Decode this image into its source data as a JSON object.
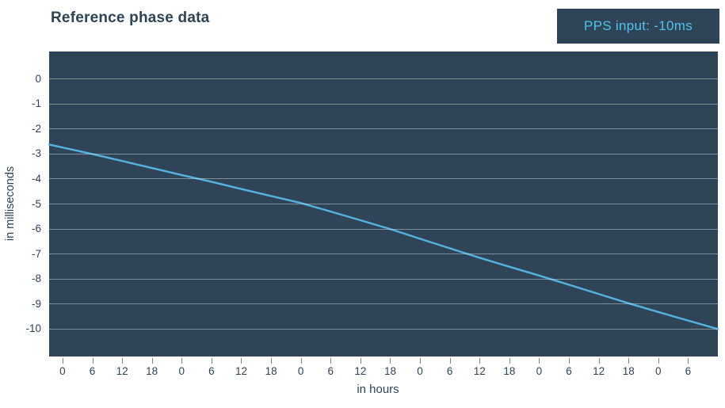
{
  "page": {
    "background": "#ffffff"
  },
  "header": {
    "title": "Reference phase data"
  },
  "badge": {
    "label": "PPS input: -10ms"
  },
  "chart_data": {
    "type": "line",
    "title": "Reference phase data",
    "xlabel": "in hours",
    "ylabel": "in milliseconds",
    "grid": "horizontal-only",
    "legend": "none",
    "x_domain_hours": [
      -2.7,
      132
    ],
    "y_domain_ms": [
      1.1,
      -11.1
    ],
    "y_tick_values": [
      0,
      -1,
      -2,
      -3,
      -4,
      -5,
      -6,
      -7,
      -8,
      -9,
      -10
    ],
    "y_tick_labels": [
      "0",
      "-1",
      "-2",
      "-3",
      "-4",
      "-5",
      "-6",
      "-7",
      "-8",
      "-9",
      "-10"
    ],
    "x_tick_hours": [
      0,
      6,
      12,
      18,
      24,
      30,
      36,
      42,
      48,
      54,
      60,
      66,
      72,
      78,
      84,
      90,
      96,
      102,
      108,
      114,
      120,
      126
    ],
    "x_tick_labels": [
      "0",
      "6",
      "12",
      "18",
      "0",
      "6",
      "12",
      "18",
      "0",
      "6",
      "12",
      "18",
      "0",
      "6",
      "12",
      "18",
      "0",
      "6",
      "12",
      "18",
      "0",
      "6"
    ],
    "series": [
      {
        "name": "Reference phase",
        "points_hours_ms": [
          [
            -2.7,
            -2.62
          ],
          [
            0,
            -2.74
          ],
          [
            6,
            -3.0
          ],
          [
            12,
            -3.28
          ],
          [
            18,
            -3.56
          ],
          [
            24,
            -3.84
          ],
          [
            30,
            -4.11
          ],
          [
            36,
            -4.4
          ],
          [
            42,
            -4.68
          ],
          [
            48,
            -4.96
          ],
          [
            54,
            -5.3
          ],
          [
            60,
            -5.65
          ],
          [
            66,
            -6.0
          ],
          [
            72,
            -6.39
          ],
          [
            78,
            -6.77
          ],
          [
            84,
            -7.15
          ],
          [
            90,
            -7.51
          ],
          [
            96,
            -7.86
          ],
          [
            102,
            -8.23
          ],
          [
            108,
            -8.6
          ],
          [
            114,
            -8.97
          ],
          [
            120,
            -9.32
          ],
          [
            126,
            -9.66
          ],
          [
            132,
            -10.0
          ]
        ]
      }
    ],
    "colors": {
      "plot_background": "#2f4557",
      "line": "#54b2e0",
      "gridline": "rgba(222,232,238,0.45)",
      "text": "#2d4356",
      "badge_background": "#2f4557",
      "badge_text": "#4ec3ec",
      "tick_mark": "#71838f"
    }
  }
}
